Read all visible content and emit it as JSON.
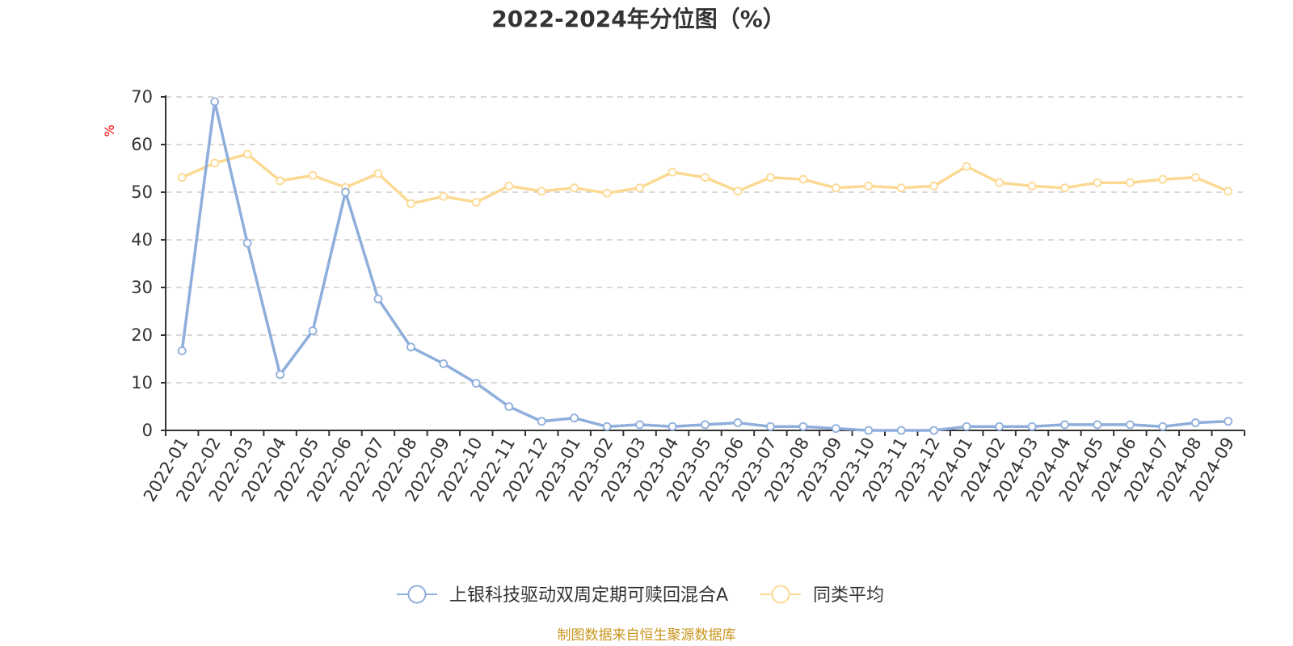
{
  "chart_data": {
    "type": "line",
    "title": "2022-2024年分位图（%）",
    "ylabel": "%",
    "xlabel": "",
    "ylim": [
      0,
      70
    ],
    "yticks": [
      0,
      10,
      20,
      30,
      40,
      50,
      60,
      70
    ],
    "grid": true,
    "legend_position": "bottom",
    "categories": [
      "2022-01",
      "2022-02",
      "2022-03",
      "2022-04",
      "2022-05",
      "2022-06",
      "2022-07",
      "2022-08",
      "2022-09",
      "2022-10",
      "2022-11",
      "2022-12",
      "2023-01",
      "2023-02",
      "2023-03",
      "2023-04",
      "2023-05",
      "2023-06",
      "2023-07",
      "2023-08",
      "2023-09",
      "2023-10",
      "2023-11",
      "2023-12",
      "2024-01",
      "2024-02",
      "2024-03",
      "2024-04",
      "2024-05",
      "2024-06",
      "2024-07",
      "2024-08",
      "2024-09"
    ],
    "series": [
      {
        "name": "上银科技驱动双周定期可赎回混合A",
        "color": "#8eaedb",
        "values": [
          16.7,
          69.0,
          39.3,
          11.7,
          20.9,
          50.0,
          27.6,
          17.5,
          14.0,
          9.9,
          5.0,
          1.9,
          2.6,
          0.8,
          1.2,
          0.8,
          1.2,
          1.6,
          0.8,
          0.8,
          0.4,
          0.0,
          0.0,
          0.0,
          0.8,
          0.8,
          0.8,
          1.2,
          1.2,
          1.2,
          0.8,
          1.6,
          1.9
        ]
      },
      {
        "name": "同类平均",
        "color": "#fcd993",
        "values": [
          53.1,
          56.1,
          58.0,
          52.4,
          53.5,
          51.0,
          53.9,
          47.6,
          49.1,
          47.9,
          51.3,
          50.2,
          50.9,
          49.8,
          50.9,
          54.2,
          53.1,
          50.2,
          53.1,
          52.7,
          50.9,
          51.3,
          50.9,
          51.3,
          55.4,
          52.0,
          51.3,
          50.9,
          52.0,
          52.0,
          52.7,
          53.1,
          50.2
        ]
      }
    ],
    "source": "制图数据来自恒生聚源数据库"
  }
}
